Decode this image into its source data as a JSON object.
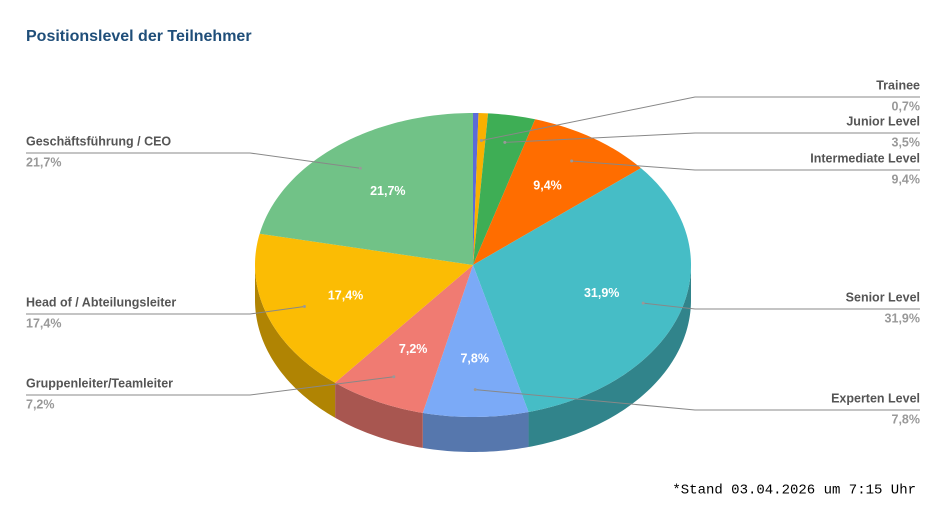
{
  "chart_data": {
    "type": "pie3d",
    "title": "Positionslevel der Teilnehmer",
    "categories": [
      null,
      "Trainee",
      "Junior Level",
      "Intermediate Level",
      "Senior Level",
      "Experten Level",
      "Gruppenleiter/Teamleiter",
      "Head of / Abteilungsleiter",
      "Geschäftsführung / CEO"
    ],
    "values": [
      0.4,
      0.7,
      3.5,
      9.4,
      31.9,
      7.8,
      7.2,
      17.4,
      21.7
    ],
    "value_labels": [
      null,
      "0,7%",
      "3,5%",
      "9,4%",
      "31,9%",
      "7,8%",
      "7,2%",
      "17,4%",
      "21,7%"
    ],
    "colors": [
      "#5c6bd8",
      "#f9b000",
      "#3eae55",
      "#ff6d00",
      "#46bdc6",
      "#7baaf7",
      "#f07b72",
      "#fbbc04",
      "#71c287"
    ],
    "footnote": "*Stand 03.04.2026 um 7:15 Uhr"
  }
}
